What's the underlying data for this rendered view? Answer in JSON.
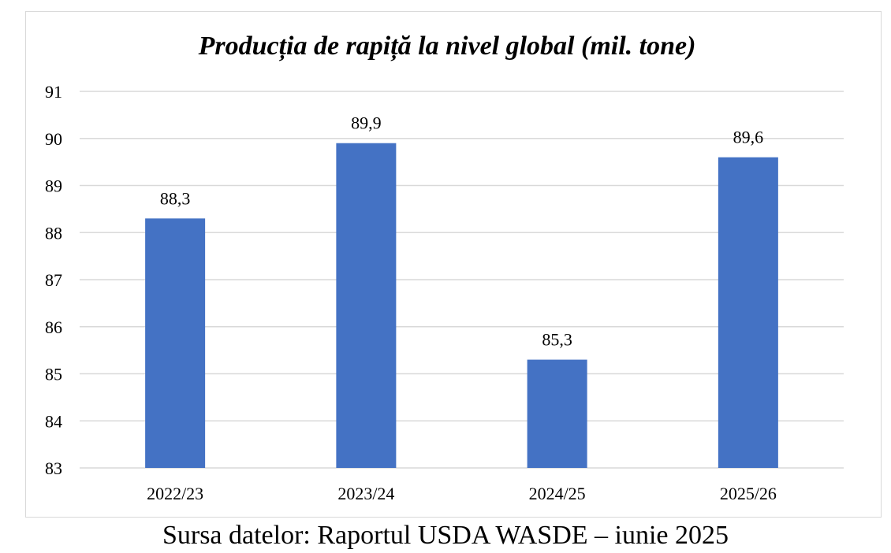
{
  "chart_data": {
    "type": "bar",
    "title": "Producția de rapiță la nivel global (mil. tone)",
    "categories": [
      "2022/23",
      "2023/24",
      "2024/25",
      "2025/26"
    ],
    "values": [
      88.3,
      89.9,
      85.3,
      89.6
    ],
    "data_labels": [
      "88,3",
      "89,9",
      "85,3",
      "89,6"
    ],
    "ylim": [
      83,
      91
    ],
    "yticks": [
      83,
      84,
      85,
      86,
      87,
      88,
      89,
      90,
      91
    ],
    "xlabel": "",
    "ylabel": "",
    "grid": true,
    "bar_color": "#4472C4"
  },
  "source_note": "Sursa datelor: Raportul USDA WASDE – iunie 2025"
}
